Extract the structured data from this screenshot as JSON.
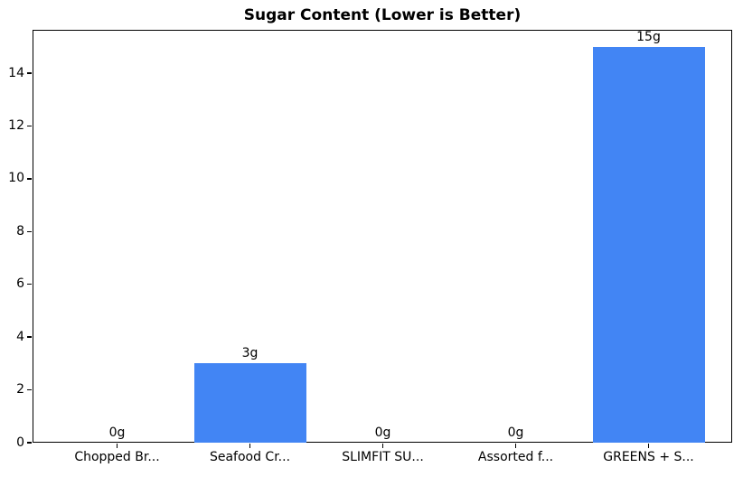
{
  "chart_data": {
    "type": "bar",
    "title": "Sugar Content (Lower is Better)",
    "categories": [
      "Chopped Br...",
      "Seafood Cr...",
      "SLIMFIT SU...",
      "Assorted f...",
      "GREENS + S..."
    ],
    "values": [
      0,
      3,
      0,
      0,
      15
    ],
    "value_labels": [
      "0g",
      "3g",
      "0g",
      "0g",
      "15g"
    ],
    "xlabel": "",
    "ylabel": "",
    "ylim": [
      0,
      15.65
    ],
    "yticks": [
      0,
      2,
      4,
      6,
      8,
      10,
      12,
      14
    ],
    "grid": false,
    "legend_position": "none",
    "bar_color": "#4285f4",
    "spine_color": "#000000",
    "background_color": "#ffffff"
  }
}
